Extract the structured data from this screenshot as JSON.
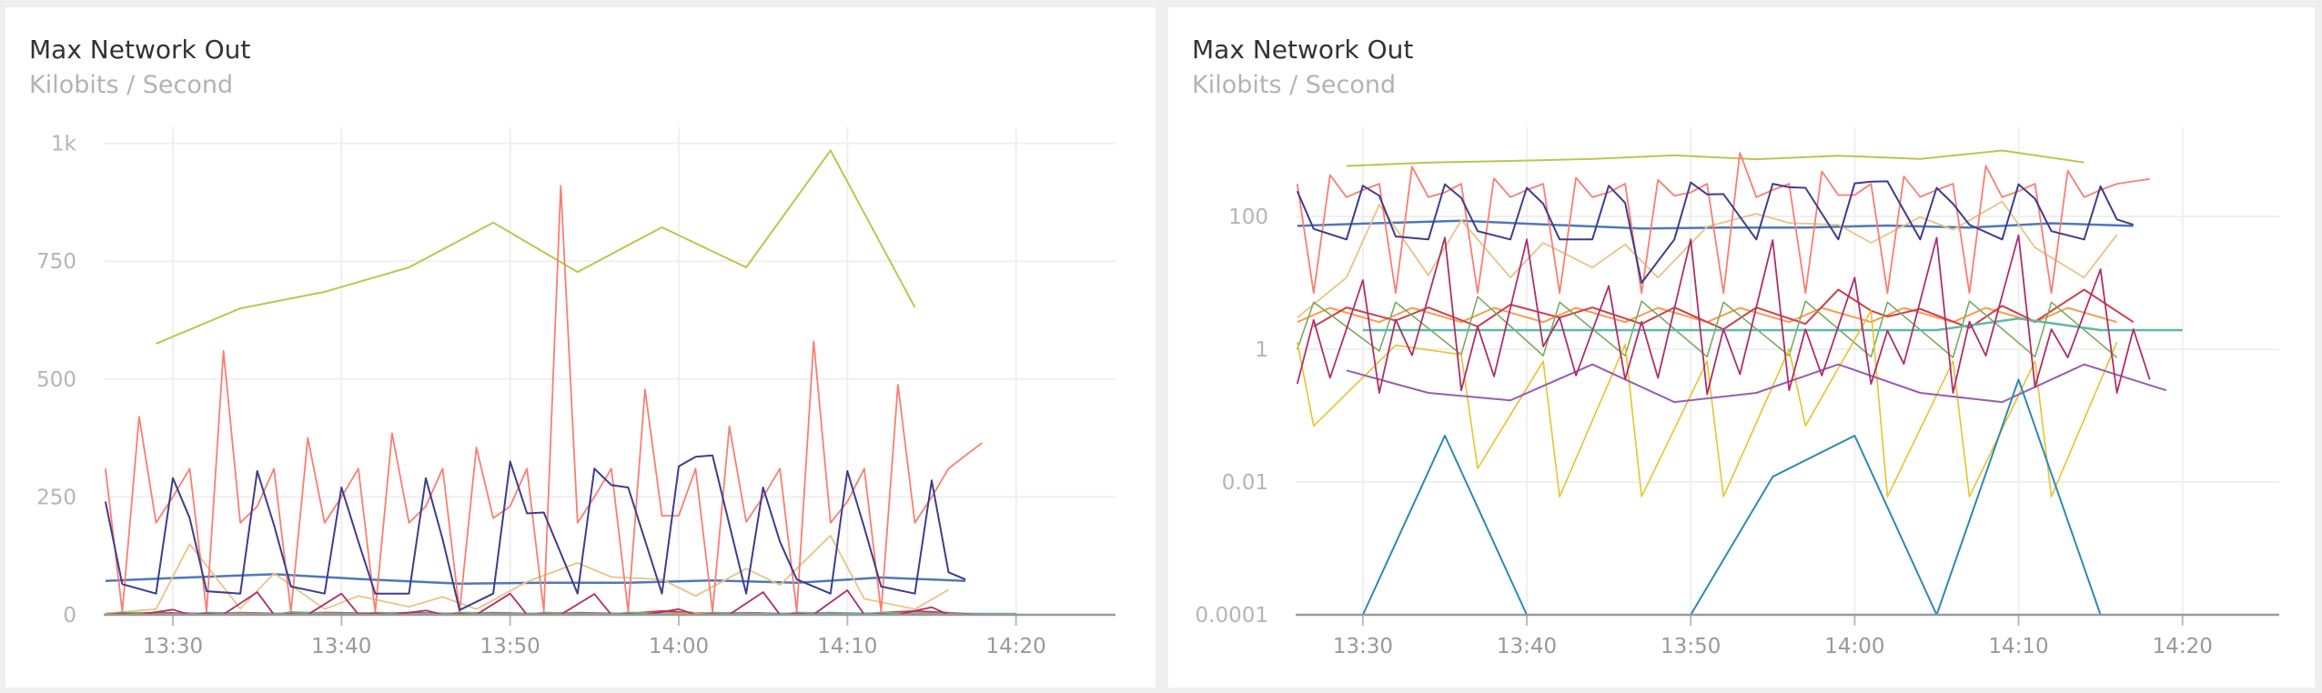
{
  "chart_data": [
    {
      "type": "line",
      "title": "Max Network Out",
      "subtitle": "Kilobits / Second",
      "yscale": "linear",
      "ylim": [
        0,
        1034
      ],
      "yticks": [
        {
          "v": 0,
          "label": "0"
        },
        {
          "v": 250,
          "label": "250"
        },
        {
          "v": 500,
          "label": "500"
        },
        {
          "v": 750,
          "label": "750"
        },
        {
          "v": 1000,
          "label": "1k"
        }
      ],
      "grid": true
    },
    {
      "type": "line",
      "title": "Max Network Out",
      "subtitle": "Kilobits / Second",
      "yscale": "log",
      "ylim": [
        0.0001,
        2200
      ],
      "yticks": [
        {
          "v": 0.0001,
          "label": "0.0001"
        },
        {
          "v": 0.01,
          "label": "0.01"
        },
        {
          "v": 1,
          "label": "1"
        },
        {
          "v": 100,
          "label": "100"
        }
      ],
      "grid": true
    }
  ],
  "x_axis": {
    "unit": "minutes after 13:26",
    "xlim": [
      -0.1,
      59.9
    ],
    "ticks": [
      {
        "v": 4,
        "label": "13:30"
      },
      {
        "v": 14,
        "label": "13:40"
      },
      {
        "v": 24,
        "label": "13:50"
      },
      {
        "v": 34,
        "label": "14:00"
      },
      {
        "v": 44,
        "label": "14:10"
      },
      {
        "v": 54,
        "label": "14:20"
      }
    ]
  },
  "series": [
    {
      "color": "#bcc64e",
      "width": 2,
      "points": [
        [
          3,
          575
        ],
        [
          8,
          650
        ],
        [
          13,
          685
        ],
        [
          18,
          737
        ],
        [
          23,
          832
        ],
        [
          28,
          727
        ],
        [
          33,
          822
        ],
        [
          38,
          737
        ],
        [
          43,
          985
        ],
        [
          48,
          652
        ]
      ]
    },
    {
      "color": "#4f78b8",
      "width": 2.5,
      "points": [
        [
          0,
          72
        ],
        [
          4,
          78
        ],
        [
          10,
          86
        ],
        [
          15,
          76
        ],
        [
          21,
          66
        ],
        [
          26,
          68
        ],
        [
          31,
          68
        ],
        [
          36,
          73
        ],
        [
          41,
          68
        ],
        [
          46,
          79
        ],
        [
          51,
          72
        ]
      ]
    },
    {
      "color": "#e9c385",
      "width": 1.8,
      "points": [
        [
          0,
          3
        ],
        [
          3,
          12
        ],
        [
          5,
          150
        ],
        [
          8,
          13
        ],
        [
          10,
          88
        ],
        [
          13,
          12
        ],
        [
          15,
          40
        ],
        [
          18,
          17
        ],
        [
          20,
          38
        ],
        [
          22,
          12
        ],
        [
          25,
          70
        ],
        [
          28,
          110
        ],
        [
          30,
          80
        ],
        [
          33,
          75
        ],
        [
          35,
          40
        ],
        [
          38,
          98
        ],
        [
          40,
          63
        ],
        [
          43,
          168
        ],
        [
          45,
          34
        ],
        [
          48,
          12
        ],
        [
          50,
          53
        ]
      ]
    },
    {
      "color": "#fa7e72",
      "width": 1.8,
      "points": [
        [
          0,
          310
        ],
        [
          1,
          7
        ],
        [
          2,
          420
        ],
        [
          3,
          195
        ],
        [
          4,
          250
        ],
        [
          5,
          310
        ],
        [
          6,
          7
        ],
        [
          7,
          560
        ],
        [
          8,
          195
        ],
        [
          9,
          230
        ],
        [
          10,
          310
        ],
        [
          11,
          7
        ],
        [
          12,
          375
        ],
        [
          13,
          195
        ],
        [
          14,
          250
        ],
        [
          15,
          310
        ],
        [
          16,
          7
        ],
        [
          17,
          385
        ],
        [
          18,
          195
        ],
        [
          19,
          230
        ],
        [
          20,
          310
        ],
        [
          21,
          7
        ],
        [
          22,
          355
        ],
        [
          23,
          205
        ],
        [
          24,
          230
        ],
        [
          25,
          310
        ],
        [
          26,
          7
        ],
        [
          27,
          910
        ],
        [
          28,
          195
        ],
        [
          29,
          250
        ],
        [
          30,
          310
        ],
        [
          31,
          7
        ],
        [
          32,
          478
        ],
        [
          33,
          210
        ],
        [
          34,
          210
        ],
        [
          35,
          310
        ],
        [
          36,
          7
        ],
        [
          37,
          400
        ],
        [
          38,
          197
        ],
        [
          39,
          250
        ],
        [
          40,
          310
        ],
        [
          41,
          7
        ],
        [
          42,
          580
        ],
        [
          43,
          195
        ],
        [
          44,
          240
        ],
        [
          45,
          310
        ],
        [
          46,
          7
        ],
        [
          47,
          488
        ],
        [
          48,
          195
        ],
        [
          49,
          250
        ],
        [
          50,
          310
        ],
        [
          51,
          338
        ],
        [
          52,
          365
        ]
      ]
    },
    {
      "color": "#3e3d8c",
      "width": 2,
      "points": [
        [
          0,
          240
        ],
        [
          1,
          65
        ],
        [
          3,
          45
        ],
        [
          4,
          290
        ],
        [
          5,
          205
        ],
        [
          6,
          50
        ],
        [
          8,
          45
        ],
        [
          9,
          305
        ],
        [
          10,
          190
        ],
        [
          11,
          60
        ],
        [
          13,
          45
        ],
        [
          14,
          270
        ],
        [
          15,
          155
        ],
        [
          16,
          45
        ],
        [
          18,
          45
        ],
        [
          19,
          290
        ],
        [
          20,
          160
        ],
        [
          21,
          10
        ],
        [
          23,
          45
        ],
        [
          24,
          325
        ],
        [
          25,
          215
        ],
        [
          26,
          217
        ],
        [
          28,
          45
        ],
        [
          29,
          310
        ],
        [
          30,
          275
        ],
        [
          31,
          270
        ],
        [
          33,
          45
        ],
        [
          34,
          315
        ],
        [
          35,
          335
        ],
        [
          36,
          338
        ],
        [
          38,
          45
        ],
        [
          39,
          270
        ],
        [
          40,
          155
        ],
        [
          41,
          75
        ],
        [
          43,
          45
        ],
        [
          44,
          305
        ],
        [
          45,
          185
        ],
        [
          46,
          60
        ],
        [
          48,
          45
        ],
        [
          49,
          285
        ],
        [
          50,
          90
        ],
        [
          51,
          75
        ]
      ]
    },
    {
      "color": "#f89c4c",
      "width": 2,
      "points": [
        [
          0,
          2.56
        ],
        [
          2,
          4.2
        ],
        [
          5,
          2.56
        ],
        [
          7,
          4.2
        ],
        [
          10,
          2.56
        ],
        [
          12,
          4.2
        ],
        [
          15,
          2.56
        ],
        [
          17,
          4.2
        ],
        [
          20,
          2.56
        ],
        [
          22,
          4.2
        ],
        [
          25,
          2.56
        ],
        [
          27,
          4.2
        ],
        [
          30,
          2.56
        ],
        [
          32,
          4.2
        ],
        [
          35,
          2.56
        ],
        [
          37,
          4.2
        ],
        [
          40,
          2.56
        ],
        [
          42,
          4.2
        ],
        [
          45,
          2.56
        ],
        [
          47,
          4.2
        ],
        [
          50,
          2.56
        ]
      ]
    },
    {
      "color": "#cf3f4c",
      "width": 2,
      "points": [
        [
          1,
          2.2
        ],
        [
          3,
          4.25
        ],
        [
          6,
          2.7
        ],
        [
          8,
          4.25
        ],
        [
          11,
          2.2
        ],
        [
          13,
          4.7
        ],
        [
          16,
          3
        ],
        [
          18,
          4.25
        ],
        [
          21,
          2.4
        ],
        [
          23,
          4.25
        ],
        [
          26,
          2
        ],
        [
          28,
          4.25
        ],
        [
          31,
          2.4
        ],
        [
          33,
          7.9
        ],
        [
          35,
          3.8
        ],
        [
          36,
          3.1
        ],
        [
          38,
          4.05
        ],
        [
          41,
          2.1
        ],
        [
          43,
          4.5
        ],
        [
          45,
          2.6
        ],
        [
          48,
          7.9
        ],
        [
          51,
          2.56
        ]
      ]
    },
    {
      "color": "#7aab5e",
      "width": 1.6,
      "points": [
        [
          0,
          1
        ],
        [
          1,
          5.1
        ],
        [
          5,
          0.94
        ],
        [
          6,
          5.1
        ],
        [
          10,
          0.83
        ],
        [
          11,
          6.2
        ],
        [
          15,
          0.8
        ],
        [
          16,
          5.1
        ],
        [
          20,
          0.8
        ],
        [
          21,
          5.3
        ],
        [
          25,
          0.77
        ],
        [
          26,
          5.1
        ],
        [
          30,
          0.8
        ],
        [
          31,
          5.3
        ],
        [
          35,
          0.77
        ],
        [
          36,
          5.1
        ],
        [
          40,
          0.75
        ],
        [
          41,
          5.3
        ],
        [
          45,
          0.77
        ],
        [
          46,
          5.1
        ],
        [
          50,
          0.75
        ]
      ]
    },
    {
      "color": "#5fb8ab",
      "width": 2.5,
      "points": [
        [
          4,
          1.94
        ],
        [
          39,
          1.94
        ],
        [
          44,
          2.9
        ],
        [
          49,
          1.94
        ],
        [
          54,
          1.94
        ]
      ]
    },
    {
      "color": "#e9c22c",
      "width": 1.6,
      "points": [
        [
          0,
          1.28
        ],
        [
          1,
          0.07
        ],
        [
          6,
          1.15
        ],
        [
          10,
          0.83
        ],
        [
          11,
          0.016
        ],
        [
          15,
          0.66
        ],
        [
          16,
          0.006
        ],
        [
          20,
          1.18
        ],
        [
          21,
          0.006
        ],
        [
          25,
          0.66
        ],
        [
          26,
          0.006
        ],
        [
          30,
          1.0
        ],
        [
          31,
          0.07
        ],
        [
          35,
          3.8
        ],
        [
          36,
          0.006
        ],
        [
          40,
          0.66
        ],
        [
          41,
          0.006
        ],
        [
          45,
          0.66
        ],
        [
          46,
          0.006
        ],
        [
          50,
          1.28
        ]
      ]
    },
    {
      "color": "#9b5bb0",
      "width": 2,
      "points": [
        [
          3,
          0.48
        ],
        [
          8,
          0.22
        ],
        [
          13,
          0.17
        ],
        [
          18,
          0.59
        ],
        [
          23,
          0.16
        ],
        [
          28,
          0.22
        ],
        [
          33,
          0.59
        ],
        [
          38,
          0.22
        ],
        [
          43,
          0.16
        ],
        [
          48,
          0.59
        ],
        [
          53,
          0.24
        ]
      ]
    },
    {
      "color": "#ad2f6b",
      "width": 1.8,
      "points": [
        [
          0,
          0.3
        ],
        [
          1,
          2.77
        ],
        [
          2,
          0.37
        ],
        [
          4,
          11
        ],
        [
          5,
          0.22
        ],
        [
          6,
          2.8
        ],
        [
          7,
          0.81
        ],
        [
          9,
          48
        ],
        [
          10,
          0.24
        ],
        [
          11,
          2.2
        ],
        [
          12,
          0.39
        ],
        [
          14,
          45
        ],
        [
          15,
          1.1
        ],
        [
          16,
          3
        ],
        [
          17,
          0.4
        ],
        [
          19,
          9
        ],
        [
          20,
          0.35
        ],
        [
          21,
          2.6
        ],
        [
          22,
          0.37
        ],
        [
          24,
          45
        ],
        [
          25,
          0.21
        ],
        [
          26,
          2
        ],
        [
          27,
          0.42
        ],
        [
          29,
          44
        ],
        [
          30,
          0.24
        ],
        [
          31,
          2
        ],
        [
          32,
          0.4
        ],
        [
          34,
          12
        ],
        [
          35,
          0.3
        ],
        [
          36,
          1.9
        ],
        [
          37,
          0.6
        ],
        [
          39,
          48
        ],
        [
          40,
          0.22
        ],
        [
          41,
          2.6
        ],
        [
          42,
          0.8
        ],
        [
          44,
          52
        ],
        [
          45,
          0.27
        ],
        [
          46,
          2
        ],
        [
          47,
          0.75
        ],
        [
          49,
          16
        ],
        [
          50,
          0.22
        ],
        [
          51,
          2
        ],
        [
          52,
          0.35
        ]
      ]
    },
    {
      "color": "#2c8ab2",
      "width": 2,
      "points": [
        [
          4,
          0.0001
        ],
        [
          9,
          0.05
        ],
        [
          14,
          0.0001
        ],
        [
          24,
          0.0001
        ],
        [
          29,
          0.012
        ],
        [
          34,
          0.05
        ],
        [
          39,
          0.0001
        ],
        [
          44,
          0.35
        ],
        [
          49,
          0.0001
        ],
        [
          54,
          0.0001
        ]
      ]
    }
  ]
}
